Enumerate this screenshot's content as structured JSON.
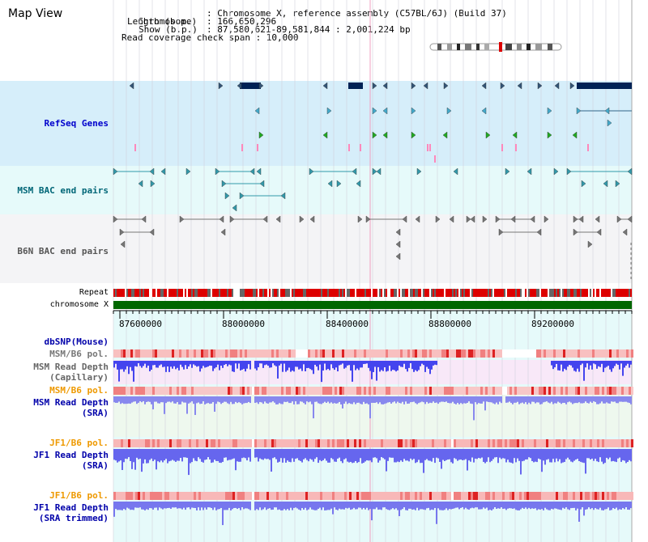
{
  "title": "Map View",
  "info": {
    "chromosome_key": "Chromosome",
    "chromosome_val": ": Chromosome X, reference assembly (C57BL/6J) (Build 37)",
    "length_key": "Length (b.p.)",
    "length_val": ": 166,650,296",
    "show_key": "Show (b.p.)",
    "show_val": ": 87,580,621-89,581,844 : 2,001,224 bp",
    "coverage": "Read coverage check span : 10,000"
  },
  "tracks": {
    "refseq": "RefSeq Genes",
    "msm_bac": "MSM BAC end pairs",
    "b6n_bac": "B6N BAC end pairs",
    "repeat": "Repeat",
    "chromosome": "chromosome X",
    "dbsnp": "dbSNP(Mouse)",
    "msm_b6_pol": "MSM/B6 pol.",
    "msm_depth_cap_1": "MSM Read Depth",
    "msm_depth_cap_2": "(Capillary)",
    "msm_b6_pol_2": "MSM/B6 pol.",
    "msm_depth_sra_1": "MSM Read Depth",
    "msm_depth_sra_2": "(SRA)",
    "jf1_b6_pol": "JF1/B6 pol.",
    "jf1_depth_sra_1": "JF1 Read Depth",
    "jf1_depth_sra_2": "(SRA)",
    "jf1_b6_pol_2": "JF1/B6 pol.",
    "jf1_depth_trim_1": "JF1 Read Depth",
    "jf1_depth_trim_2": "(SRA trimmed)"
  },
  "axis": {
    "ticks": [
      "87600000",
      "88000000",
      "88400000",
      "88800000",
      "89200000"
    ]
  },
  "colors": {
    "refseq_label": "#0000cc",
    "msm_bac_label": "#006677",
    "b6n_bac_label": "#555555",
    "pol_orange": "#ee9900",
    "refseq_bg": "#d6eefa",
    "msm_bg": "#e6fafa",
    "b6n_bg": "#f4f4f6",
    "gene_dark": "#002255",
    "depth_blue": "#4444ee",
    "pol_red": "#ee2222",
    "chromosome_green": "#006600"
  },
  "icons": {
    "gene_arrow": "triangle-arrow-icon",
    "ideogram": "chromosome-ideogram-icon"
  }
}
